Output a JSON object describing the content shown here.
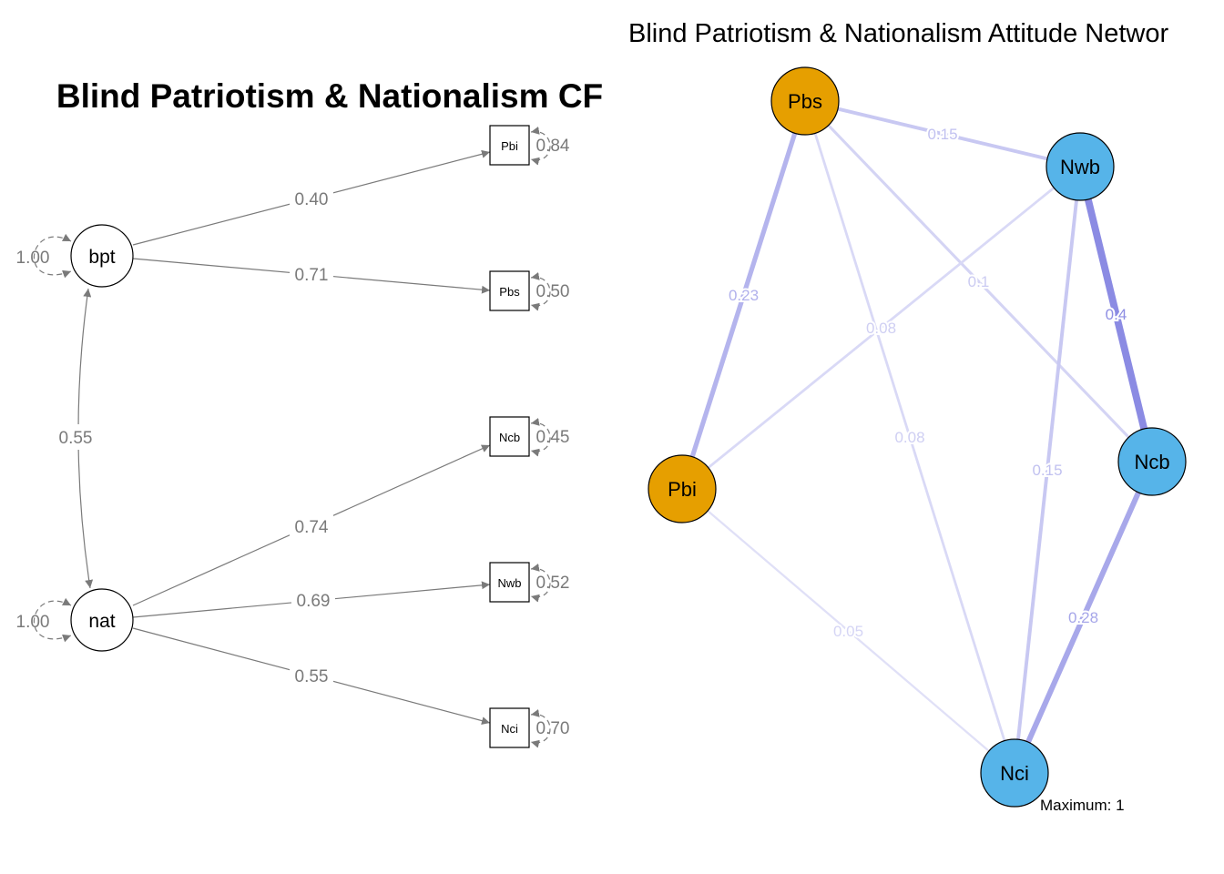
{
  "sem": {
    "title": "Blind Patriotism & Nationalism CF",
    "latents": [
      {
        "id": "bpt",
        "label": "bpt",
        "variance": "1.00"
      },
      {
        "id": "nat",
        "label": "nat",
        "variance": "1.00"
      }
    ],
    "manifests": [
      {
        "id": "Pbi",
        "label": "Pbi",
        "residual": "0.84"
      },
      {
        "id": "Pbs",
        "label": "Pbs",
        "residual": "0.50"
      },
      {
        "id": "Ncb",
        "label": "Ncb",
        "residual": "0.45"
      },
      {
        "id": "Nwb",
        "label": "Nwb",
        "residual": "0.52"
      },
      {
        "id": "Nci",
        "label": "Nci",
        "residual": "0.70"
      }
    ],
    "loadings": [
      {
        "from": "bpt",
        "to": "Pbi",
        "value": "0.40"
      },
      {
        "from": "bpt",
        "to": "Pbs",
        "value": "0.71"
      },
      {
        "from": "nat",
        "to": "Ncb",
        "value": "0.74"
      },
      {
        "from": "nat",
        "to": "Nwb",
        "value": "0.69"
      },
      {
        "from": "nat",
        "to": "Nci",
        "value": "0.55"
      }
    ],
    "covariance": {
      "from": "bpt",
      "to": "nat",
      "value": "0.55"
    }
  },
  "network": {
    "title": "Blind Patriotism & Nationalism Attitude Networ",
    "maximum_label": "Maximum: 1",
    "colors": {
      "patriotism": "#E69F00",
      "nationalism": "#56B4E9",
      "edge": "#8080E0"
    },
    "nodes": [
      {
        "id": "Pbs",
        "label": "Pbs",
        "group": "patriotism"
      },
      {
        "id": "Nwb",
        "label": "Nwb",
        "group": "nationalism"
      },
      {
        "id": "Pbi",
        "label": "Pbi",
        "group": "patriotism"
      },
      {
        "id": "Ncb",
        "label": "Ncb",
        "group": "nationalism"
      },
      {
        "id": "Nci",
        "label": "Nci",
        "group": "nationalism"
      }
    ],
    "edges": [
      {
        "from": "Pbs",
        "to": "Nwb",
        "weight": 0.15,
        "label": "0.15"
      },
      {
        "from": "Pbs",
        "to": "Pbi",
        "weight": 0.23,
        "label": "0.23"
      },
      {
        "from": "Pbs",
        "to": "Ncb",
        "weight": 0.1,
        "label": "0.1"
      },
      {
        "from": "Pbs",
        "to": "Nci",
        "weight": 0.08,
        "label": "0.08"
      },
      {
        "from": "Nwb",
        "to": "Pbi",
        "weight": 0.08,
        "label": "0.08"
      },
      {
        "from": "Nwb",
        "to": "Ncb",
        "weight": 0.4,
        "label": "0.4"
      },
      {
        "from": "Nwb",
        "to": "Nci",
        "weight": 0.15,
        "label": "0.15"
      },
      {
        "from": "Ncb",
        "to": "Nci",
        "weight": 0.28,
        "label": "0.28"
      },
      {
        "from": "Pbi",
        "to": "Nci",
        "weight": 0.05,
        "label": "0.05"
      }
    ]
  }
}
